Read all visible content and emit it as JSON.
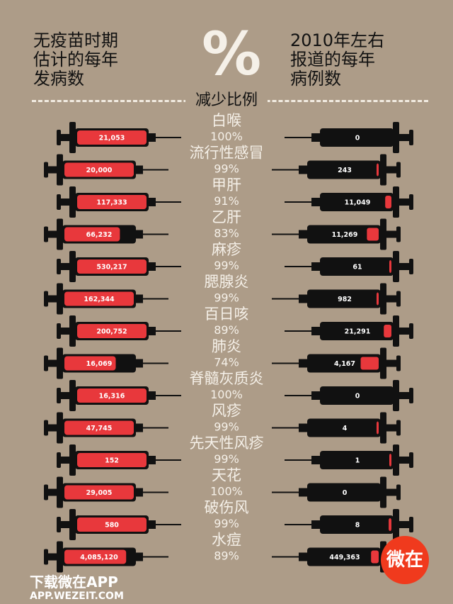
{
  "header": {
    "left_lines": [
      "无疫苗时期",
      "估计的每年",
      "发病数"
    ],
    "right_lines": [
      "2010年左右",
      "报道的每年",
      "病例数"
    ],
    "percent_symbol": "%",
    "reduction_label": "减少比例"
  },
  "colors": {
    "background": "#ad9c88",
    "red": "#e8383c",
    "syringe": "#111111",
    "text_light": "#f5f0e8"
  },
  "chart_data": {
    "type": "table",
    "columns": [
      "无疫苗时期估计的每年发病数",
      "减少比例",
      "2010年左右报道的每年病例数"
    ],
    "rows": [
      {
        "disease": "白喉",
        "before": "21,053",
        "reduction": "100%",
        "after": "0",
        "before_fill": 1,
        "after_fill": 0
      },
      {
        "disease": "流行性感冒",
        "before": "20,000",
        "reduction": "99%",
        "after": "243",
        "before_fill": 1,
        "after_fill": 0.02
      },
      {
        "disease": "甲肝",
        "before": "117,333",
        "reduction": "91%",
        "after": "11,049",
        "before_fill": 1,
        "after_fill": 0.09
      },
      {
        "disease": "乙肝",
        "before": "66,232",
        "reduction": "83%",
        "after": "11,269",
        "before_fill": 0.8,
        "after_fill": 0.17
      },
      {
        "disease": "麻疹",
        "before": "530,217",
        "reduction": "99%",
        "after": "61",
        "before_fill": 1,
        "after_fill": 0.01
      },
      {
        "disease": "腮腺炎",
        "before": "162,344",
        "reduction": "99%",
        "after": "982",
        "before_fill": 1,
        "after_fill": 0.01
      },
      {
        "disease": "百日咳",
        "before": "200,752",
        "reduction": "89%",
        "after": "21,291",
        "before_fill": 1,
        "after_fill": 0.11
      },
      {
        "disease": "肺炎",
        "before": "16,069",
        "reduction": "74%",
        "after": "4,167",
        "before_fill": 0.74,
        "after_fill": 0.26
      },
      {
        "disease": "脊髓灰质炎",
        "before": "16,316",
        "reduction": "100%",
        "after": "0",
        "before_fill": 1,
        "after_fill": 0
      },
      {
        "disease": "风疹",
        "before": "47,745",
        "reduction": "99%",
        "after": "4",
        "before_fill": 1,
        "after_fill": 0.01
      },
      {
        "disease": "先天性风疹",
        "before": "152",
        "reduction": "99%",
        "after": "1",
        "before_fill": 1,
        "after_fill": 0.01
      },
      {
        "disease": "天花",
        "before": "29,005",
        "reduction": "100%",
        "after": "0",
        "before_fill": 1,
        "after_fill": 0
      },
      {
        "disease": "破伤风",
        "before": "580",
        "reduction": "99%",
        "after": "8",
        "before_fill": 1,
        "after_fill": 0.04
      },
      {
        "disease": "水痘",
        "before": "4,085,120",
        "reduction": "89%",
        "after": "449,363",
        "before_fill": 0.89,
        "after_fill": 0.11
      }
    ]
  },
  "watermark": {
    "line1": "下载微在APP",
    "line2": "APP.WEZEIT.COM",
    "logo_text": "微在"
  }
}
